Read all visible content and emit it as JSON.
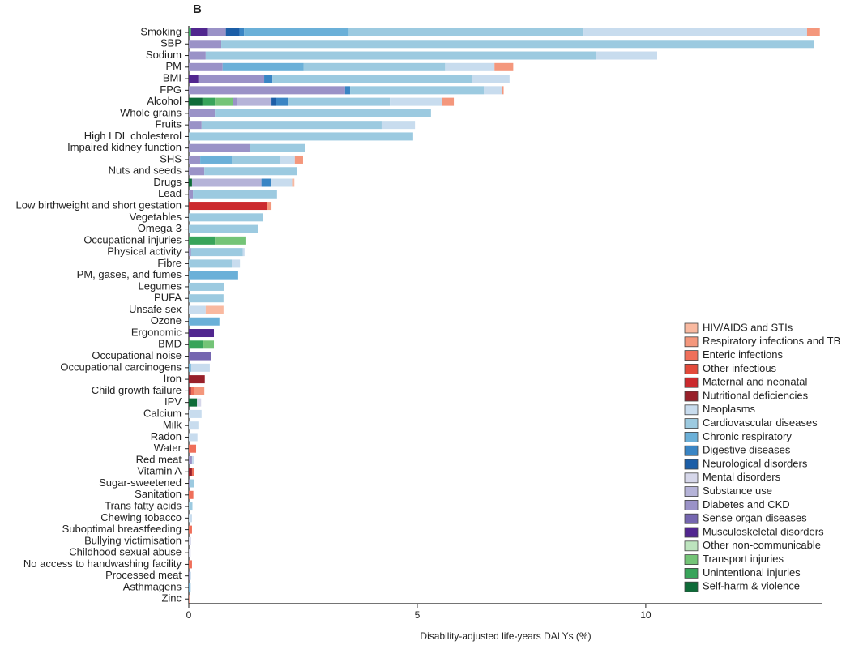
{
  "chart_data": {
    "type": "stacked-barh",
    "panel_label": "B",
    "xlabel": "Disability-adjusted life-years DALYs (%)",
    "xlim": [
      0,
      13.85
    ],
    "xticks": [
      0,
      5,
      10
    ],
    "categories": [
      "Smoking",
      "SBP",
      "Sodium",
      "PM",
      "BMI",
      "FPG",
      "Alcohol",
      "Whole grains",
      "Fruits",
      "High LDL cholesterol",
      "Impaired kidney function",
      "SHS",
      "Nuts and seeds",
      "Drugs",
      "Lead",
      "Low birthweight and short gestation",
      "Vegetables",
      "Omega-3",
      "Occupational injuries",
      "Physical activity",
      "Fibre",
      "PM, gases, and fumes",
      "Legumes",
      "PUFA",
      "Unsafe sex",
      "Ozone",
      "Ergonomic",
      "BMD",
      "Occupational noise",
      "Occupational carcinogens",
      "Iron",
      "Child growth failure",
      "IPV",
      "Calcium",
      "Milk",
      "Radon",
      "Water",
      "Red meat",
      "Vitamin A",
      "Sugar-sweetened",
      "Sanitation",
      "Trans fatty acids",
      "Chewing tobacco",
      "Suboptimal breastfeeding",
      "Bullying victimisation",
      "Childhood sexual abuse",
      "No access to handwashing facility",
      "Processed meat",
      "Asthmagens",
      "Zinc"
    ],
    "legend_position": "lower right",
    "series": [
      {
        "name": "HIV/AIDS and STIs",
        "color": "#f9b9a0",
        "values": [
          0,
          0,
          0,
          0,
          0,
          0,
          0,
          0,
          0,
          0,
          0,
          0,
          0,
          0.05,
          0,
          0,
          0,
          0,
          0,
          0,
          0,
          0,
          0,
          0,
          0.39,
          0,
          0,
          0,
          0,
          0,
          0,
          0,
          0,
          0,
          0,
          0,
          0,
          0,
          0,
          0,
          0,
          0,
          0,
          0,
          0,
          0,
          0,
          0,
          0,
          0
        ]
      },
      {
        "name": "Respiratory infections and TB",
        "color": "#f4977c",
        "values": [
          0.28,
          0,
          0,
          0.41,
          0,
          0.04,
          0.25,
          0,
          0,
          0,
          0,
          0.18,
          0,
          0,
          0,
          0.09,
          0,
          0,
          0,
          0,
          0,
          0,
          0,
          0,
          0,
          0,
          0,
          0,
          0,
          0,
          0,
          0.22,
          0,
          0,
          0,
          0,
          0,
          0,
          0,
          0,
          0,
          0,
          0,
          0,
          0,
          0,
          0,
          0,
          0,
          0
        ]
      },
      {
        "name": "Enteric infections",
        "color": "#ef6f5a",
        "values": [
          0,
          0,
          0,
          0,
          0,
          0,
          0,
          0,
          0,
          0,
          0,
          0,
          0,
          0,
          0,
          0,
          0,
          0,
          0,
          0,
          0,
          0,
          0,
          0,
          0,
          0,
          0,
          0,
          0,
          0,
          0,
          0.07,
          0,
          0,
          0,
          0,
          0.16,
          0,
          0.05,
          0,
          0.1,
          0,
          0,
          0.07,
          0,
          0,
          0.07,
          0,
          0,
          0.01
        ]
      },
      {
        "name": "Other infectious",
        "color": "#e34a3b",
        "values": [
          0,
          0,
          0,
          0,
          0,
          0,
          0,
          0,
          0,
          0,
          0,
          0,
          0,
          0,
          0,
          0,
          0,
          0,
          0,
          0,
          0,
          0,
          0,
          0,
          0,
          0,
          0,
          0,
          0,
          0,
          0,
          0,
          0,
          0,
          0,
          0,
          0,
          0,
          0,
          0,
          0,
          0,
          0,
          0,
          0,
          0,
          0,
          0,
          0,
          0
        ]
      },
      {
        "name": "Maternal and neonatal",
        "color": "#cb2a2e",
        "values": [
          0,
          0,
          0,
          0,
          0,
          0,
          0,
          0,
          0,
          0,
          0,
          0,
          0,
          0,
          0,
          1.72,
          0,
          0,
          0,
          0,
          0,
          0,
          0,
          0,
          0,
          0,
          0,
          0,
          0,
          0,
          0,
          0,
          0,
          0,
          0,
          0,
          0,
          0,
          0,
          0,
          0,
          0,
          0,
          0,
          0,
          0,
          0,
          0,
          0,
          0
        ]
      },
      {
        "name": "Nutritional deficiencies",
        "color": "#98202a",
        "values": [
          0,
          0,
          0,
          0,
          0,
          0,
          0,
          0,
          0,
          0,
          0,
          0,
          0,
          0,
          0,
          0,
          0,
          0,
          0,
          0,
          0,
          0,
          0,
          0,
          0,
          0,
          0,
          0,
          0,
          0,
          0.35,
          0.05,
          0,
          0,
          0,
          0,
          0,
          0,
          0.07,
          0,
          0,
          0,
          0,
          0,
          0,
          0,
          0,
          0,
          0,
          0
        ]
      },
      {
        "name": "Neoplasms",
        "color": "#c8dcee",
        "values": [
          4.89,
          0,
          1.33,
          1.08,
          0.83,
          0.39,
          1.15,
          0,
          0.73,
          0,
          0,
          0.32,
          0,
          0.46,
          0,
          0,
          0,
          0,
          0,
          0.04,
          0.18,
          0,
          0,
          0,
          0.37,
          0,
          0,
          0,
          0,
          0.41,
          0,
          0,
          0,
          0.28,
          0.21,
          0.19,
          0,
          0.05,
          0,
          0,
          0,
          0,
          0.07,
          0,
          0,
          0,
          0,
          0.02,
          0,
          0
        ]
      },
      {
        "name": "Cardiovascular diseases",
        "color": "#9ccae0",
        "values": [
          5.14,
          12.98,
          8.55,
          3.1,
          4.36,
          2.93,
          2.23,
          4.73,
          3.94,
          4.91,
          1.22,
          1.06,
          2.02,
          0,
          1.84,
          0,
          1.63,
          1.52,
          0,
          1.13,
          0.94,
          0,
          0.78,
          0.76,
          0,
          0,
          0,
          0,
          0,
          0,
          0,
          0,
          0,
          0,
          0,
          0,
          0,
          0,
          0,
          0.09,
          0,
          0.08,
          0,
          0,
          0,
          0,
          0,
          0,
          0,
          0
        ]
      },
      {
        "name": "Chronic respiratory",
        "color": "#6bb0d8",
        "values": [
          2.29,
          0,
          0,
          1.77,
          0,
          0,
          0,
          0,
          0,
          0,
          0,
          0.69,
          0,
          0,
          0,
          0,
          0,
          0,
          0,
          0,
          0,
          1.08,
          0,
          0,
          0,
          0.67,
          0,
          0,
          0,
          0.05,
          0,
          0,
          0,
          0,
          0,
          0,
          0,
          0,
          0,
          0,
          0,
          0,
          0,
          0,
          0,
          0,
          0,
          0,
          0.04,
          0
        ]
      },
      {
        "name": "Digestive diseases",
        "color": "#3a85c4",
        "values": [
          0.1,
          0,
          0,
          0,
          0.18,
          0.11,
          0.27,
          0,
          0,
          0,
          0,
          0,
          0,
          0.21,
          0,
          0,
          0,
          0,
          0,
          0,
          0,
          0,
          0,
          0,
          0,
          0,
          0,
          0,
          0,
          0,
          0,
          0,
          0,
          0,
          0,
          0,
          0,
          0,
          0,
          0,
          0,
          0,
          0,
          0,
          0,
          0,
          0,
          0,
          0,
          0
        ]
      },
      {
        "name": "Neurological disorders",
        "color": "#1c5ea7",
        "values": [
          0.3,
          0,
          0,
          0,
          0,
          0,
          0.09,
          0,
          0,
          0,
          0,
          0,
          0,
          0,
          0,
          0,
          0,
          0,
          0,
          0,
          0,
          0,
          0,
          0,
          0,
          0,
          0,
          0,
          0,
          0,
          0,
          0,
          0,
          0,
          0,
          0,
          0,
          0,
          0,
          0,
          0,
          0,
          0,
          0,
          0,
          0,
          0,
          0,
          0,
          0
        ]
      },
      {
        "name": "Mental disorders",
        "color": "#d6d7ea",
        "values": [
          0,
          0,
          0,
          0,
          0,
          0,
          0,
          0,
          0,
          0,
          0,
          0,
          0,
          0,
          0,
          0,
          0,
          0,
          0,
          0,
          0,
          0,
          0,
          0,
          0,
          0,
          0,
          0,
          0,
          0,
          0,
          0,
          0.09,
          0,
          0,
          0,
          0,
          0,
          0,
          0,
          0,
          0,
          0,
          0,
          0.05,
          0.04,
          0,
          0,
          0,
          0
        ]
      },
      {
        "name": "Substance use",
        "color": "#b5b3d8",
        "values": [
          0,
          0,
          0,
          0,
          0,
          0,
          0.76,
          0,
          0,
          0,
          0,
          0,
          0,
          1.52,
          0,
          0,
          0,
          0,
          0,
          0,
          0,
          0,
          0,
          0,
          0,
          0,
          0,
          0,
          0,
          0,
          0,
          0,
          0,
          0,
          0,
          0,
          0,
          0,
          0,
          0,
          0,
          0,
          0,
          0,
          0,
          0,
          0,
          0,
          0,
          0
        ]
      },
      {
        "name": "Diabetes and CKD",
        "color": "#9a92c7",
        "values": [
          0.39,
          0.71,
          0.37,
          0.74,
          1.44,
          3.42,
          0.09,
          0.57,
          0.28,
          0,
          1.33,
          0.25,
          0.34,
          0,
          0.09,
          0,
          0,
          0,
          0,
          0.05,
          0,
          0,
          0,
          0,
          0,
          0,
          0,
          0,
          0,
          0,
          0,
          0,
          0,
          0,
          0,
          0,
          0,
          0.07,
          0,
          0.03,
          0,
          0,
          0,
          0,
          0,
          0,
          0,
          0.03,
          0,
          0
        ]
      },
      {
        "name": "Sense organ diseases",
        "color": "#7566b0",
        "values": [
          0,
          0,
          0,
          0,
          0,
          0,
          0,
          0,
          0,
          0,
          0,
          0,
          0,
          0,
          0,
          0,
          0,
          0,
          0,
          0,
          0,
          0,
          0,
          0,
          0,
          0,
          0,
          0,
          0.48,
          0,
          0,
          0,
          0,
          0,
          0,
          0,
          0,
          0,
          0,
          0,
          0,
          0,
          0,
          0,
          0,
          0,
          0,
          0,
          0,
          0
        ]
      },
      {
        "name": "Musculoskeletal disorders",
        "color": "#51268f",
        "values": [
          0.37,
          0,
          0,
          0,
          0.21,
          0,
          0,
          0,
          0,
          0,
          0,
          0,
          0,
          0,
          0,
          0,
          0,
          0,
          0,
          0,
          0,
          0,
          0,
          0,
          0,
          0,
          0.55,
          0,
          0,
          0,
          0,
          0,
          0,
          0,
          0,
          0,
          0,
          0,
          0,
          0,
          0,
          0,
          0,
          0,
          0,
          0,
          0,
          0,
          0,
          0
        ]
      },
      {
        "name": "Other non-communicable",
        "color": "#bde4be",
        "values": [
          0,
          0,
          0,
          0,
          0,
          0,
          0,
          0,
          0,
          0,
          0,
          0,
          0,
          0,
          0,
          0,
          0,
          0,
          0,
          0,
          0,
          0,
          0,
          0,
          0,
          0,
          0,
          0,
          0,
          0,
          0,
          0,
          0,
          0,
          0,
          0,
          0,
          0,
          0,
          0,
          0,
          0,
          0,
          0,
          0,
          0,
          0,
          0,
          0,
          0
        ]
      },
      {
        "name": "Transport injuries",
        "color": "#74c477",
        "values": [
          0,
          0,
          0,
          0,
          0,
          0,
          0.39,
          0,
          0,
          0,
          0,
          0,
          0,
          0,
          0,
          0,
          0,
          0,
          0.67,
          0,
          0,
          0,
          0,
          0,
          0,
          0,
          0,
          0.23,
          0,
          0,
          0,
          0,
          0,
          0,
          0,
          0,
          0,
          0,
          0,
          0,
          0,
          0,
          0,
          0,
          0,
          0,
          0,
          0,
          0,
          0
        ]
      },
      {
        "name": "Unintentional injuries",
        "color": "#38a45a",
        "values": [
          0.05,
          0,
          0,
          0,
          0,
          0,
          0.27,
          0,
          0,
          0,
          0,
          0,
          0,
          0,
          0,
          0,
          0,
          0,
          0.57,
          0,
          0,
          0,
          0,
          0,
          0,
          0,
          0,
          0.32,
          0,
          0,
          0,
          0,
          0,
          0,
          0,
          0,
          0,
          0,
          0,
          0,
          0,
          0,
          0,
          0,
          0,
          0,
          0,
          0,
          0,
          0
        ]
      },
      {
        "name": "Self-harm & violence",
        "color": "#0e6b38",
        "values": [
          0,
          0,
          0,
          0,
          0,
          0,
          0.3,
          0,
          0,
          0,
          0,
          0,
          0,
          0.07,
          0,
          0,
          0,
          0,
          0,
          0,
          0,
          0,
          0,
          0,
          0,
          0,
          0,
          0,
          0,
          0,
          0,
          0,
          0.18,
          0,
          0,
          0,
          0,
          0,
          0,
          0,
          0,
          0,
          0,
          0,
          0,
          0,
          0,
          0,
          0,
          0
        ]
      }
    ]
  }
}
